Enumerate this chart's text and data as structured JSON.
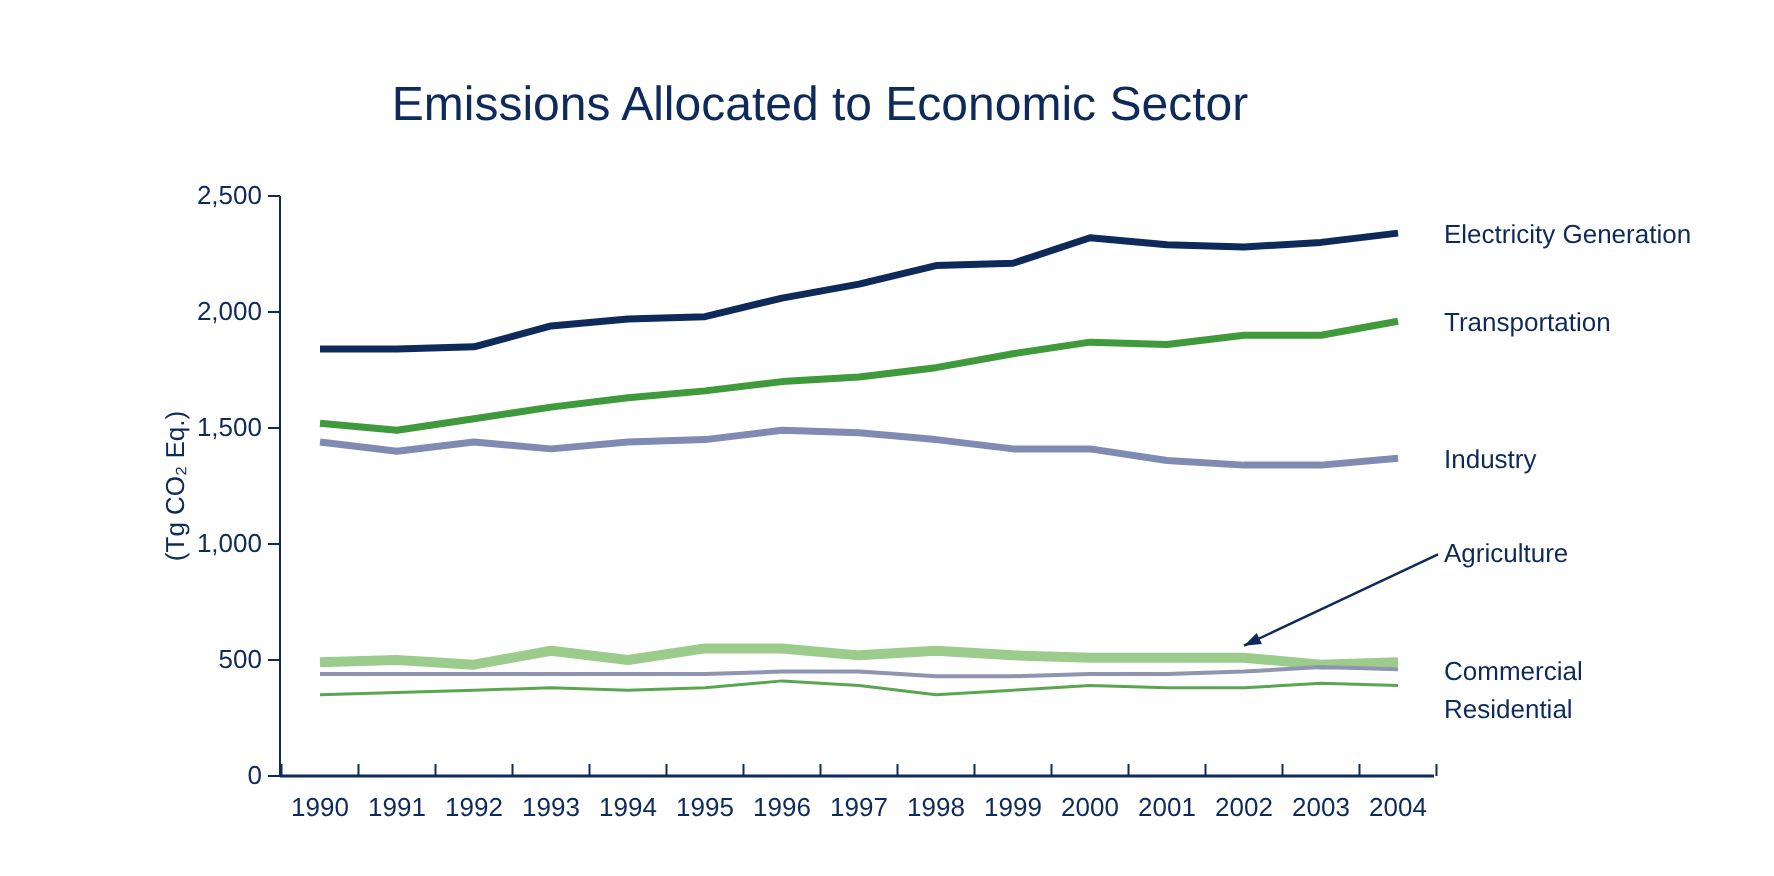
{
  "chart_data": {
    "type": "line",
    "title": "Emissions Allocated to Economic Sector",
    "ylabel": "(Tg CO₂ Eq.)",
    "categories": [
      "1990",
      "1991",
      "1992",
      "1993",
      "1994",
      "1995",
      "1996",
      "1997",
      "1998",
      "1999",
      "2000",
      "2001",
      "2002",
      "2003",
      "2004"
    ],
    "series": [
      {
        "name": "Electricity Generation",
        "color": "#0d2a5a",
        "values": [
          1840,
          1840,
          1850,
          1940,
          1970,
          1980,
          2060,
          2120,
          2200,
          2210,
          2320,
          2290,
          2280,
          2300,
          2340
        ]
      },
      {
        "name": "Transportation",
        "color": "#3e9a3a",
        "values": [
          1520,
          1490,
          1540,
          1590,
          1630,
          1660,
          1700,
          1720,
          1760,
          1820,
          1870,
          1860,
          1900,
          1900,
          1960
        ]
      },
      {
        "name": "Industry",
        "color": "#7f8bb3",
        "values": [
          1440,
          1400,
          1440,
          1410,
          1440,
          1450,
          1490,
          1480,
          1450,
          1410,
          1410,
          1360,
          1340,
          1340,
          1370
        ]
      },
      {
        "name": "Agriculture",
        "color": "#9ccc8c",
        "values": [
          490,
          500,
          480,
          540,
          500,
          550,
          550,
          520,
          540,
          520,
          510,
          510,
          510,
          480,
          490
        ]
      },
      {
        "name": "Commercial",
        "color": "#8f94b0",
        "values": [
          440,
          440,
          440,
          440,
          440,
          440,
          450,
          450,
          430,
          430,
          440,
          440,
          450,
          470,
          460
        ]
      },
      {
        "name": "Residential",
        "color": "#5aa650",
        "values": [
          350,
          360,
          370,
          380,
          370,
          380,
          410,
          390,
          350,
          370,
          390,
          380,
          380,
          400,
          390
        ]
      }
    ],
    "ylim": [
      0,
      2500
    ],
    "yticks": [
      0,
      500,
      {
        "value": 1000,
        "label": "1,000"
      },
      {
        "value": 1500,
        "label": "1,500"
      },
      {
        "value": 2000,
        "label": "2,000"
      },
      {
        "value": 2500,
        "label": "2,500"
      }
    ],
    "grid": false,
    "marker": "none",
    "line_style": "solid"
  }
}
